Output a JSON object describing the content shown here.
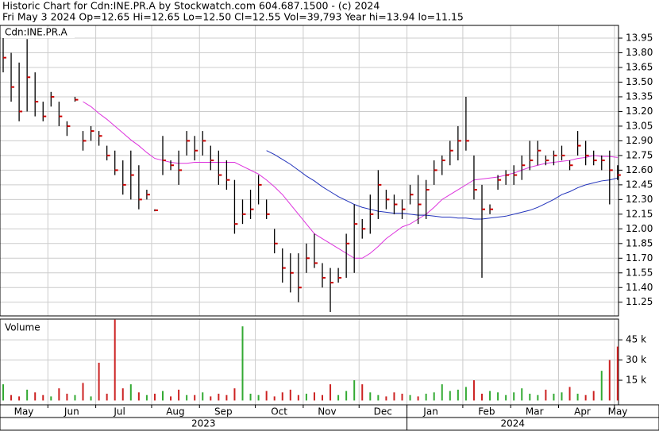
{
  "header": {
    "line1": "Historic Chart for Cdn:INE.PR.A by Stockwatch.com 604.687.1500 - (c) 2024",
    "line2": "Fri May  3 2024  Op=12.65  Hi=12.65  Lo=12.50  Cl=12.55  Vol=39,793  Year hi=13.94  lo=11.15"
  },
  "chart_data": [
    {
      "type": "hlc",
      "title": "Cdn:INE.PR.A",
      "categories": [
        "May",
        null,
        null,
        null,
        null,
        null,
        "Jun",
        null,
        null,
        null,
        null,
        null,
        "Jul",
        null,
        null,
        null,
        null,
        null,
        null,
        "Aug",
        null,
        null,
        null,
        null,
        null,
        "Sep",
        null,
        null,
        null,
        null,
        null,
        null,
        "Oct",
        null,
        null,
        null,
        null,
        null,
        "Nov",
        null,
        null,
        null,
        null,
        null,
        null,
        "Dec",
        null,
        null,
        null,
        null,
        null,
        "Jan",
        null,
        null,
        null,
        null,
        null,
        null,
        "Feb",
        null,
        null,
        null,
        null,
        null,
        "Mar",
        null,
        null,
        null,
        null,
        null,
        "Apr",
        null,
        null,
        null,
        null,
        null,
        null,
        "May"
      ],
      "years": [
        "2023",
        "2024"
      ],
      "high": [
        13.95,
        13.8,
        13.7,
        13.94,
        13.6,
        13.3,
        13.4,
        13.3,
        13.1,
        13.35,
        13.0,
        13.05,
        13.0,
        12.85,
        12.8,
        12.7,
        12.8,
        12.65,
        12.4,
        12.2,
        12.95,
        12.7,
        12.8,
        13.0,
        12.95,
        13.0,
        12.85,
        12.8,
        12.7,
        12.5,
        12.3,
        12.4,
        12.55,
        12.3,
        12.0,
        11.8,
        11.75,
        11.75,
        11.85,
        11.95,
        11.65,
        11.6,
        11.6,
        11.95,
        12.25,
        12.1,
        12.35,
        12.6,
        12.4,
        12.35,
        12.3,
        12.45,
        12.55,
        12.5,
        12.7,
        12.75,
        12.9,
        13.05,
        13.35,
        12.75,
        12.45,
        12.25,
        12.55,
        12.6,
        12.65,
        12.75,
        12.9,
        12.9,
        12.75,
        12.8,
        12.85,
        12.7,
        13.0,
        12.9,
        12.8,
        12.75,
        12.8,
        12.65
      ],
      "low": [
        13.6,
        13.3,
        13.1,
        13.2,
        13.15,
        13.1,
        13.25,
        13.05,
        12.95,
        13.3,
        12.8,
        12.9,
        12.85,
        12.7,
        12.55,
        12.35,
        12.3,
        12.2,
        12.3,
        12.18,
        12.55,
        12.6,
        12.45,
        12.75,
        12.7,
        12.75,
        12.6,
        12.45,
        12.4,
        11.95,
        12.05,
        12.1,
        12.25,
        12.1,
        11.75,
        11.45,
        11.35,
        11.25,
        11.55,
        11.6,
        11.4,
        11.15,
        11.45,
        11.5,
        11.55,
        11.9,
        11.95,
        12.1,
        12.2,
        12.15,
        12.1,
        12.25,
        12.05,
        12.1,
        12.45,
        12.55,
        12.65,
        12.7,
        12.8,
        12.3,
        11.5,
        12.15,
        12.4,
        12.45,
        12.45,
        12.5,
        12.6,
        12.65,
        12.65,
        12.65,
        12.7,
        12.6,
        12.75,
        12.65,
        12.65,
        12.6,
        12.25,
        12.5
      ],
      "close": [
        13.75,
        13.45,
        13.2,
        13.55,
        13.3,
        13.15,
        13.35,
        13.15,
        13.05,
        13.32,
        12.9,
        13.0,
        12.95,
        12.75,
        12.6,
        12.45,
        12.55,
        12.3,
        12.35,
        12.19,
        12.7,
        12.65,
        12.6,
        12.9,
        12.8,
        12.9,
        12.7,
        12.55,
        12.5,
        12.05,
        12.15,
        12.2,
        12.45,
        12.15,
        11.85,
        11.6,
        11.55,
        11.4,
        11.7,
        11.65,
        11.5,
        11.45,
        11.5,
        11.85,
        12.05,
        12.0,
        12.15,
        12.45,
        12.3,
        12.25,
        12.2,
        12.35,
        12.25,
        12.4,
        12.6,
        12.7,
        12.8,
        12.9,
        12.9,
        12.4,
        12.2,
        12.2,
        12.5,
        12.55,
        12.55,
        12.65,
        12.7,
        12.8,
        12.7,
        12.75,
        12.75,
        12.65,
        12.85,
        12.75,
        12.7,
        12.7,
        12.6,
        12.55
      ],
      "bar_color": "#000000",
      "close_color": "#cc0000",
      "lines": [
        {
          "color": "#dd33dd",
          "values": [
            null,
            null,
            null,
            null,
            null,
            null,
            null,
            null,
            null,
            null,
            13.3,
            13.25,
            13.18,
            13.12,
            13.05,
            12.98,
            12.91,
            12.85,
            12.78,
            12.72,
            12.7,
            12.68,
            12.67,
            12.67,
            12.68,
            12.68,
            12.68,
            12.68,
            12.68,
            12.68,
            12.64,
            12.6,
            12.56,
            12.5,
            12.43,
            12.35,
            12.25,
            12.15,
            12.05,
            11.95,
            11.9,
            11.85,
            11.8,
            11.75,
            11.7,
            11.7,
            11.75,
            11.82,
            11.9,
            11.96,
            12.02,
            12.05,
            12.1,
            12.15,
            12.22,
            12.3,
            12.35,
            12.4,
            12.45,
            12.5,
            12.51,
            12.52,
            12.53,
            12.55,
            12.57,
            12.6,
            12.63,
            12.65,
            12.67,
            12.68,
            12.69,
            12.7,
            12.72,
            12.73,
            12.75,
            12.74,
            12.74,
            12.73
          ]
        },
        {
          "color": "#2233bb",
          "values": [
            null,
            null,
            null,
            null,
            null,
            null,
            null,
            null,
            null,
            null,
            null,
            null,
            null,
            null,
            null,
            null,
            null,
            null,
            null,
            null,
            null,
            null,
            null,
            null,
            null,
            null,
            null,
            null,
            null,
            null,
            null,
            null,
            null,
            12.8,
            12.76,
            12.71,
            12.66,
            12.6,
            12.54,
            12.49,
            12.43,
            12.38,
            12.33,
            12.29,
            12.25,
            12.22,
            12.2,
            12.18,
            12.17,
            12.16,
            12.16,
            12.15,
            12.14,
            12.14,
            12.13,
            12.12,
            12.12,
            12.11,
            12.11,
            12.1,
            12.1,
            12.11,
            12.12,
            12.13,
            12.15,
            12.17,
            12.19,
            12.22,
            12.26,
            12.3,
            12.35,
            12.38,
            12.42,
            12.45,
            12.47,
            12.49,
            12.5,
            12.52
          ]
        }
      ],
      "ylim": [
        11.11,
        14.08
      ],
      "yticks": [
        13.95,
        {
          "value": 13.8,
          "label": "13.80"
        },
        13.65,
        {
          "value": 13.5,
          "label": "13.50"
        },
        13.35,
        {
          "value": 13.2,
          "label": "13.20"
        },
        13.05,
        {
          "value": 12.9,
          "label": "12.90"
        },
        12.75,
        {
          "value": 12.6,
          "label": "12.60"
        },
        12.45,
        {
          "value": 12.3,
          "label": "12.30"
        },
        12.15,
        {
          "value": 12.0,
          "label": "12.00"
        },
        11.85,
        {
          "value": 11.7,
          "label": "11.70"
        },
        11.55,
        {
          "value": 11.4,
          "label": "11.40"
        },
        11.25
      ],
      "grid": true
    },
    {
      "type": "bar",
      "title": "Volume",
      "values": [
        12000,
        4000,
        3000,
        8000,
        6000,
        4000,
        3000,
        9000,
        5000,
        4000,
        13000,
        3000,
        28000,
        5000,
        60000,
        9000,
        12000,
        6000,
        4000,
        5000,
        7000,
        3000,
        8000,
        4000,
        4000,
        6000,
        3000,
        5000,
        4000,
        9000,
        55000,
        5000,
        4000,
        7000,
        3000,
        6000,
        8000,
        4000,
        5000,
        6000,
        4000,
        12000,
        4000,
        7000,
        15000,
        12000,
        6000,
        4000,
        3000,
        6000,
        5000,
        4000,
        3000,
        5000,
        6000,
        12000,
        7000,
        8000,
        10000,
        15000,
        5000,
        7000,
        6000,
        4000,
        6000,
        9000,
        5000,
        4000,
        8000,
        5000,
        6000,
        10000,
        5000,
        4000,
        7000,
        22000,
        30000,
        40000
      ],
      "up_color": "#33aa33",
      "down_color": "#cc2222",
      "ylim": [
        0,
        60400
      ],
      "yticks": [
        {
          "value": 15000,
          "label": "15 k"
        },
        {
          "value": 30000,
          "label": "30 k"
        },
        {
          "value": 45000,
          "label": "45 k"
        }
      ],
      "grid": true
    }
  ]
}
